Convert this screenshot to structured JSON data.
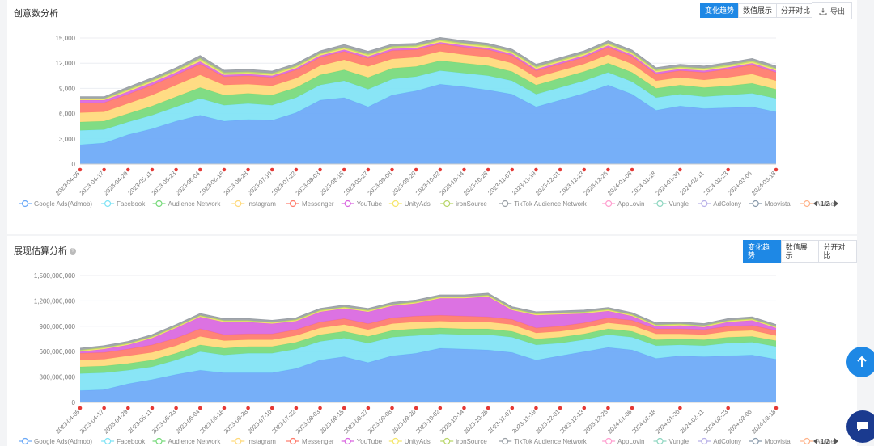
{
  "panels": [
    {
      "title": "创意数分析",
      "buttons": [
        "变化趋势",
        "数值展示",
        "分开对比"
      ],
      "export_label": "导出",
      "pager": "1/2"
    },
    {
      "title": "展现估算分析",
      "buttons": [
        "变化趋势",
        "数值展示",
        "分开对比"
      ],
      "pager": "1/2"
    }
  ],
  "legend": [
    "Google Ads(Admob)",
    "Facebook",
    "Audience Network",
    "Instagram",
    "Messenger",
    "YouTube",
    "UnityAds",
    "ironSource",
    "TikTok Audience Network",
    "AppLovin",
    "Vungle",
    "AdColony",
    "Mobvista",
    "Akane"
  ],
  "colors": {
    "accent": "#1e88e5",
    "series": [
      "#6aa8f7",
      "#7fe3f5",
      "#76d97a",
      "#ffd97a",
      "#ff7a6a",
      "#d966e0",
      "#f5e66a",
      "#b9d66a",
      "#9aa0a6",
      "#ff9fd0",
      "#8ed6c0",
      "#b8b0e8",
      "#8899aa",
      "#ffb38a"
    ],
    "marker": "#e53935"
  },
  "icons": [
    "download-icon",
    "info-icon",
    "arrow-up-icon",
    "chat-icon"
  ],
  "chart_data": [
    {
      "type": "area",
      "title": "",
      "stacked": true,
      "x": [
        "2023-04-05",
        "2023-04-17",
        "2023-04-29",
        "2023-05-11",
        "2023-05-23",
        "2023-06-04",
        "2023-06-16",
        "2023-06-28",
        "2023-07-10",
        "2023-07-22",
        "2023-08-03",
        "2023-08-15",
        "2023-08-27",
        "2023-09-08",
        "2023-09-20",
        "2023-10-02",
        "2023-10-14",
        "2023-10-26",
        "2023-11-07",
        "2023-11-19",
        "2023-12-01",
        "2023-12-13",
        "2023-12-25",
        "2024-01-06",
        "2024-01-18",
        "2024-01-30",
        "2024-02-11",
        "2024-02-23",
        "2024-03-06",
        "2024-03-18"
      ],
      "yticks": [
        "0",
        "3,000",
        "6,000",
        "9,000",
        "12,000",
        "15,000"
      ],
      "ylim": [
        0,
        15000
      ],
      "series": [
        {
          "name": "Google Ads(Admob)",
          "values": [
            2300,
            2500,
            3500,
            4200,
            5100,
            5800,
            5100,
            5300,
            5200,
            6100,
            7600,
            7900,
            6800,
            8200,
            8700,
            9500,
            9200,
            8800,
            8300,
            6800,
            7600,
            8400,
            9400,
            8300,
            6400,
            6900,
            6600,
            6700,
            6800,
            6200
          ]
        },
        {
          "name": "Facebook",
          "values": [
            1700,
            1600,
            1500,
            1600,
            1700,
            2000,
            1900,
            1900,
            1800,
            1800,
            1800,
            2000,
            2100,
            1900,
            1700,
            1600,
            1600,
            1700,
            1600,
            1500,
            1500,
            1500,
            1500,
            1500,
            1500,
            1400,
            1400,
            1500,
            1600,
            1600
          ]
        },
        {
          "name": "Audience Network",
          "values": [
            1000,
            1000,
            1000,
            1100,
            1200,
            1300,
            1200,
            1200,
            1200,
            1200,
            1200,
            1300,
            1400,
            1300,
            1200,
            1200,
            1200,
            1200,
            1100,
            1100,
            1100,
            1100,
            1100,
            1100,
            1100,
            1100,
            1100,
            1100,
            1200,
            1100
          ]
        },
        {
          "name": "Instagram",
          "values": [
            1100,
            1100,
            1200,
            1300,
            1400,
            1500,
            1200,
            1100,
            1100,
            1100,
            1100,
            1200,
            1300,
            1100,
            1100,
            1100,
            1000,
            1000,
            1000,
            900,
            900,
            900,
            1000,
            1000,
            900,
            900,
            900,
            1000,
            1100,
            1000
          ]
        },
        {
          "name": "Messenger",
          "values": [
            1200,
            1100,
            1100,
            1200,
            1200,
            1300,
            1000,
            1000,
            1000,
            1000,
            1000,
            1000,
            1000,
            1000,
            900,
            900,
            900,
            900,
            900,
            800,
            800,
            800,
            900,
            900,
            800,
            800,
            900,
            1000,
            1100,
            1000
          ]
        },
        {
          "name": "YouTube",
          "values": [
            300,
            300,
            300,
            300,
            300,
            300,
            200,
            200,
            200,
            200,
            200,
            200,
            200,
            200,
            200,
            200,
            200,
            200,
            200,
            200,
            200,
            200,
            200,
            200,
            200,
            200,
            200,
            200,
            200,
            200
          ]
        },
        {
          "name": "UnityAds",
          "values": [
            100,
            100,
            150,
            150,
            150,
            200,
            150,
            150,
            150,
            150,
            150,
            150,
            150,
            150,
            150,
            150,
            150,
            150,
            150,
            150,
            150,
            150,
            150,
            150,
            150,
            150,
            150,
            150,
            150,
            150
          ]
        },
        {
          "name": "ironSource",
          "values": [
            100,
            100,
            150,
            150,
            150,
            200,
            150,
            150,
            150,
            150,
            150,
            150,
            150,
            150,
            150,
            150,
            150,
            150,
            150,
            150,
            150,
            150,
            150,
            150,
            150,
            150,
            150,
            150,
            150,
            150
          ]
        },
        {
          "name": "TikTok Audience Network",
          "values": [
            200,
            200,
            250,
            250,
            250,
            300,
            250,
            250,
            250,
            250,
            250,
            300,
            300,
            250,
            250,
            250,
            250,
            250,
            250,
            250,
            250,
            250,
            250,
            250,
            250,
            250,
            250,
            250,
            250,
            250
          ]
        }
      ]
    },
    {
      "type": "area",
      "title": "",
      "stacked": true,
      "x": [
        "2023-04-05",
        "2023-04-17",
        "2023-04-29",
        "2023-05-11",
        "2023-05-23",
        "2023-06-04",
        "2023-06-16",
        "2023-06-28",
        "2023-07-10",
        "2023-07-22",
        "2023-08-03",
        "2023-08-15",
        "2023-08-27",
        "2023-09-08",
        "2023-09-20",
        "2023-10-02",
        "2023-10-14",
        "2023-10-26",
        "2023-11-07",
        "2023-11-19",
        "2023-12-01",
        "2023-12-13",
        "2023-12-25",
        "2024-01-06",
        "2024-01-18",
        "2024-01-30",
        "2024-02-11",
        "2024-02-23",
        "2024-03-06",
        "2024-03-18"
      ],
      "yticks": [
        "0",
        "300,000,000",
        "600,000,000",
        "900,000,000",
        "1,200,000,000",
        "1,500,000,000"
      ],
      "ylim": [
        0,
        1500000000
      ],
      "series": [
        {
          "name": "Google Ads(Admob)",
          "values": [
            140000000,
            150000000,
            220000000,
            270000000,
            330000000,
            380000000,
            350000000,
            350000000,
            350000000,
            400000000,
            500000000,
            540000000,
            470000000,
            550000000,
            580000000,
            640000000,
            630000000,
            620000000,
            590000000,
            500000000,
            550000000,
            600000000,
            650000000,
            620000000,
            520000000,
            550000000,
            540000000,
            550000000,
            560000000,
            510000000
          ]
        },
        {
          "name": "Facebook",
          "values": [
            200000000,
            200000000,
            160000000,
            150000000,
            170000000,
            220000000,
            210000000,
            230000000,
            230000000,
            230000000,
            220000000,
            220000000,
            230000000,
            220000000,
            210000000,
            170000000,
            170000000,
            180000000,
            180000000,
            180000000,
            150000000,
            140000000,
            150000000,
            150000000,
            150000000,
            130000000,
            130000000,
            150000000,
            150000000,
            150000000
          ]
        },
        {
          "name": "Audience Network",
          "values": [
            80000000,
            80000000,
            80000000,
            80000000,
            80000000,
            80000000,
            80000000,
            80000000,
            80000000,
            80000000,
            80000000,
            80000000,
            80000000,
            80000000,
            80000000,
            70000000,
            70000000,
            70000000,
            70000000,
            70000000,
            70000000,
            70000000,
            70000000,
            70000000,
            70000000,
            70000000,
            70000000,
            70000000,
            70000000,
            70000000
          ]
        },
        {
          "name": "Instagram",
          "values": [
            80000000,
            80000000,
            90000000,
            90000000,
            90000000,
            100000000,
            90000000,
            80000000,
            80000000,
            80000000,
            80000000,
            80000000,
            80000000,
            80000000,
            80000000,
            80000000,
            80000000,
            80000000,
            80000000,
            70000000,
            70000000,
            70000000,
            70000000,
            70000000,
            70000000,
            60000000,
            60000000,
            70000000,
            70000000,
            60000000
          ]
        },
        {
          "name": "Messenger",
          "values": [
            80000000,
            80000000,
            80000000,
            90000000,
            90000000,
            90000000,
            70000000,
            70000000,
            70000000,
            70000000,
            70000000,
            70000000,
            70000000,
            70000000,
            70000000,
            70000000,
            70000000,
            60000000,
            60000000,
            60000000,
            60000000,
            60000000,
            60000000,
            60000000,
            60000000,
            60000000,
            60000000,
            60000000,
            60000000,
            60000000
          ]
        },
        {
          "name": "YouTube",
          "values": [
            20000000,
            40000000,
            50000000,
            80000000,
            120000000,
            140000000,
            150000000,
            140000000,
            120000000,
            100000000,
            120000000,
            120000000,
            140000000,
            140000000,
            150000000,
            200000000,
            210000000,
            240000000,
            110000000,
            150000000,
            140000000,
            110000000,
            80000000,
            50000000,
            30000000,
            40000000,
            30000000,
            50000000,
            60000000,
            30000000
          ]
        },
        {
          "name": "UnityAds",
          "values": [
            10000000,
            10000000,
            10000000,
            10000000,
            10000000,
            10000000,
            10000000,
            10000000,
            10000000,
            10000000,
            10000000,
            10000000,
            10000000,
            10000000,
            10000000,
            10000000,
            10000000,
            10000000,
            10000000,
            10000000,
            10000000,
            10000000,
            10000000,
            10000000,
            10000000,
            10000000,
            10000000,
            10000000,
            10000000,
            10000000
          ]
        },
        {
          "name": "ironSource",
          "values": [
            10000000,
            10000000,
            10000000,
            10000000,
            10000000,
            10000000,
            10000000,
            10000000,
            10000000,
            10000000,
            10000000,
            10000000,
            10000000,
            10000000,
            10000000,
            10000000,
            10000000,
            10000000,
            10000000,
            10000000,
            10000000,
            10000000,
            10000000,
            10000000,
            10000000,
            10000000,
            10000000,
            10000000,
            10000000,
            10000000
          ]
        },
        {
          "name": "TikTok Audience Network",
          "values": [
            20000000,
            20000000,
            20000000,
            20000000,
            20000000,
            20000000,
            20000000,
            20000000,
            20000000,
            20000000,
            20000000,
            20000000,
            20000000,
            20000000,
            20000000,
            20000000,
            20000000,
            20000000,
            20000000,
            20000000,
            20000000,
            20000000,
            20000000,
            20000000,
            20000000,
            20000000,
            20000000,
            20000000,
            20000000,
            20000000
          ]
        }
      ]
    }
  ]
}
